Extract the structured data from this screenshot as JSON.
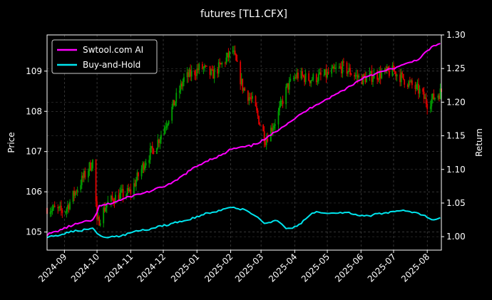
{
  "chart_data": {
    "type": "line",
    "title": "futures [TL1.CFX]",
    "ylabel_left": "Price",
    "ylabel_right": "Return",
    "x_ticks": [
      "2024-09",
      "2024-10",
      "2024-11",
      "2024-12",
      "2025-01",
      "2025-02",
      "2025-03",
      "2025-04",
      "2025-05",
      "2025-06",
      "2025-07",
      "2025-08"
    ],
    "x_range": [
      "2024-08-16",
      "2025-08-14"
    ],
    "y_left_range": [
      104.55,
      109.9
    ],
    "y_left_ticks": [
      105,
      106,
      107,
      108,
      109
    ],
    "y_right_range": [
      0.98,
      1.3
    ],
    "y_right_ticks": [
      1.0,
      1.05,
      1.1,
      1.15,
      1.2,
      1.25,
      1.3
    ],
    "y_right_tick_labels": [
      "1.00",
      "1.05",
      "1.10",
      "1.15",
      "1.20",
      "1.25",
      "1.30"
    ],
    "grid": true,
    "legend_position": "top-left",
    "colors": {
      "up": "#00a000",
      "down": "#e00000",
      "ai": "#ff00ff",
      "bh": "#00e5ee",
      "background": "#000000"
    },
    "price_series": {
      "name": "Price (candlestick)",
      "x": [
        "2024-08-16",
        "2024-09-01",
        "2024-09-15",
        "2024-09-28",
        "2024-10-01",
        "2024-10-10",
        "2024-10-20",
        "2024-11-01",
        "2024-11-15",
        "2024-11-25",
        "2024-12-05",
        "2024-12-20",
        "2025-01-05",
        "2025-01-15",
        "2025-01-25",
        "2025-02-03",
        "2025-02-12",
        "2025-02-22",
        "2025-03-05",
        "2025-03-15",
        "2025-03-25",
        "2025-04-03",
        "2025-04-15",
        "2025-04-30",
        "2025-05-15",
        "2025-06-01",
        "2025-06-15",
        "2025-07-01",
        "2025-07-15",
        "2025-07-25",
        "2025-08-01",
        "2025-08-14"
      ],
      "values": [
        105.6,
        105.5,
        106.2,
        106.8,
        105.2,
        105.7,
        105.9,
        106.0,
        106.8,
        107.2,
        107.8,
        108.8,
        109.1,
        108.9,
        109.2,
        109.5,
        108.6,
        108.2,
        107.3,
        107.8,
        108.6,
        108.9,
        108.8,
        108.9,
        109.1,
        108.8,
        108.9,
        109.0,
        108.7,
        108.5,
        108.2,
        108.5
      ]
    },
    "series": [
      {
        "name": "Swtool.com AI",
        "x": [
          "2024-08-16",
          "2024-08-25",
          "2024-09-10",
          "2024-09-28",
          "2024-10-03",
          "2024-10-15",
          "2024-11-01",
          "2024-11-20",
          "2024-12-10",
          "2024-12-25",
          "2025-01-10",
          "2025-01-25",
          "2025-02-01",
          "2025-02-20",
          "2025-03-05",
          "2025-03-20",
          "2025-04-05",
          "2025-04-20",
          "2025-05-05",
          "2025-05-20",
          "2025-06-05",
          "2025-06-20",
          "2025-07-10",
          "2025-07-25",
          "2025-08-05",
          "2025-08-14"
        ],
        "values": [
          1.003,
          1.008,
          1.018,
          1.025,
          1.045,
          1.05,
          1.06,
          1.068,
          1.08,
          1.098,
          1.113,
          1.122,
          1.13,
          1.135,
          1.145,
          1.163,
          1.18,
          1.196,
          1.208,
          1.222,
          1.238,
          1.245,
          1.255,
          1.265,
          1.282,
          1.287
        ]
      },
      {
        "name": "Buy-and-Hold",
        "x": [
          "2024-08-16",
          "2024-08-25",
          "2024-09-10",
          "2024-09-28",
          "2024-10-01",
          "2024-10-08",
          "2024-10-20",
          "2024-11-01",
          "2024-11-20",
          "2024-12-10",
          "2024-12-25",
          "2025-01-10",
          "2025-01-25",
          "2025-02-03",
          "2025-02-15",
          "2025-02-25",
          "2025-03-05",
          "2025-03-15",
          "2025-03-25",
          "2025-04-03",
          "2025-04-20",
          "2025-05-05",
          "2025-05-20",
          "2025-06-05",
          "2025-06-20",
          "2025-07-10",
          "2025-07-25",
          "2025-08-05",
          "2025-08-14"
        ],
        "values": [
          1.0,
          1.002,
          1.008,
          1.012,
          1.005,
          0.998,
          1.0,
          1.006,
          1.012,
          1.02,
          1.026,
          1.035,
          1.04,
          1.043,
          1.04,
          1.03,
          1.02,
          1.024,
          1.012,
          1.015,
          1.038,
          1.035,
          1.036,
          1.03,
          1.035,
          1.038,
          1.034,
          1.026,
          1.028
        ]
      }
    ]
  }
}
